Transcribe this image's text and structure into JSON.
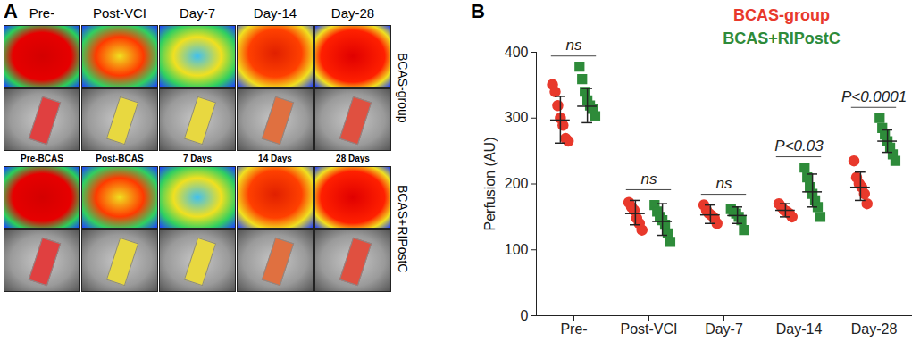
{
  "panels": [
    "A",
    "B"
  ],
  "panel_a": {
    "columns": [
      "Pre-",
      "Post-VCI",
      "Day-7",
      "Day-14",
      "Day-28"
    ],
    "row_groups": [
      "BCAS-group",
      "BCAS+RIPostC"
    ],
    "subheader": [
      "Pre-BCAS",
      "Post-BCAS",
      "7 Days",
      "14 Days",
      "28 Days"
    ]
  },
  "chart_data": {
    "type": "scatter",
    "y_label": "Perfusion (AU)",
    "categories": [
      "Pre-",
      "Post-VCI",
      "Day-7",
      "Day-14",
      "Day-28"
    ],
    "ylim": [
      0,
      400
    ],
    "yticks": [
      0,
      100,
      200,
      300,
      400
    ],
    "legend": "top",
    "series": [
      {
        "name": "BCAS-group",
        "color": "#e8392c",
        "marker": "circle",
        "values": [
          [
            351,
            340,
            319,
            300,
            289,
            269,
            265
          ],
          [
            172,
            165,
            160,
            148,
            140,
            130
          ],
          [
            168,
            160,
            155,
            152,
            148,
            140
          ],
          [
            170,
            165,
            160,
            158,
            155,
            150
          ],
          [
            235,
            210,
            200,
            195,
            185,
            170
          ]
        ],
        "mean": [
          297,
          155,
          153,
          160,
          195
        ],
        "error": [
          [
            262,
            333
          ],
          [
            138,
            175
          ],
          [
            140,
            168
          ],
          [
            150,
            170
          ],
          [
            175,
            218
          ]
        ]
      },
      {
        "name": "BCAS+RIPostC",
        "color": "#2e8b3a",
        "marker": "square",
        "values": [
          [
            378,
            359,
            340,
            327,
            319,
            314,
            303
          ],
          [
            168,
            158,
            150,
            145,
            138,
            125,
            112
          ],
          [
            162,
            158,
            155,
            150,
            145,
            130
          ],
          [
            225,
            210,
            195,
            185,
            175,
            165,
            150
          ],
          [
            300,
            285,
            275,
            265,
            255,
            245,
            235
          ]
        ],
        "mean": [
          318,
          143,
          152,
          188,
          265
        ],
        "error": [
          [
            293,
            345
          ],
          [
            122,
            170
          ],
          [
            140,
            165
          ],
          [
            165,
            215
          ],
          [
            248,
            282
          ]
        ]
      }
    ],
    "annotations": [
      {
        "category": "Pre-",
        "text": "ns"
      },
      {
        "category": "Post-VCI",
        "text": "ns"
      },
      {
        "category": "Day-7",
        "text": "ns"
      },
      {
        "category": "Day-14",
        "text": "P<0.03"
      },
      {
        "category": "Day-28",
        "text": "P<0.0001"
      }
    ]
  }
}
